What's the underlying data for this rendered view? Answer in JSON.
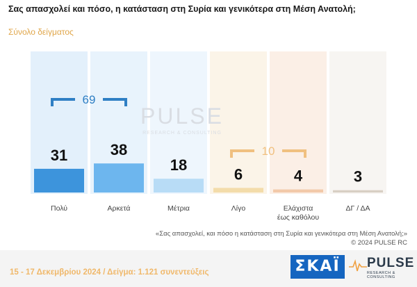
{
  "header": {
    "title": "Σας απασχολεί και πόσο, η κατάσταση στη Συρία και γενικότερα στη Μέση Ανατολή;",
    "subtitle": "Σύνολο δείγματος"
  },
  "chart_data": {
    "type": "bar",
    "categories": [
      "Πολύ",
      "Αρκετά",
      "Μέτρια",
      "Λίγο",
      "Ελάχιστα έως καθόλου",
      "ΔΓ / ΔΑ"
    ],
    "values": [
      31,
      38,
      18,
      6,
      4,
      3
    ],
    "ylim": [
      0,
      100
    ],
    "groups": [
      {
        "label": "69",
        "from": 0,
        "to": 1,
        "color": "#2f7fc4"
      },
      {
        "label": "10",
        "from": 3,
        "to": 4,
        "color": "#f0c080"
      }
    ],
    "bar_colors": [
      "#3d94dc",
      "#6db6ee",
      "#b8dcf6",
      "#f3dcaa",
      "#f2c9a9",
      "#d8cfc4"
    ],
    "column_bg_colors": [
      "#e3f0fb",
      "#e8f3fc",
      "#eef6fd",
      "#fbf4e8",
      "#fbefe6",
      "#f7f5f2"
    ]
  },
  "watermark": {
    "name": "PULSE",
    "tagline": "RESEARCH & CONSULTING"
  },
  "source": {
    "quote": "«Σας απασχολεί, και πόσο η κατάσταση στη Συρία και γενικότερα στη Μέση Ανατολή;»",
    "copyright": "©  2024  PULSE RC"
  },
  "footer": {
    "note": "15 - 17 Δεκεμβρίου 2024  /  Δείγμα:  1.121 συνεντεύξεις",
    "skai_logo": "ΣΚΑΪ",
    "pulse_name": "PULSE",
    "pulse_tagline": "RESEARCH & CONSULTING"
  }
}
